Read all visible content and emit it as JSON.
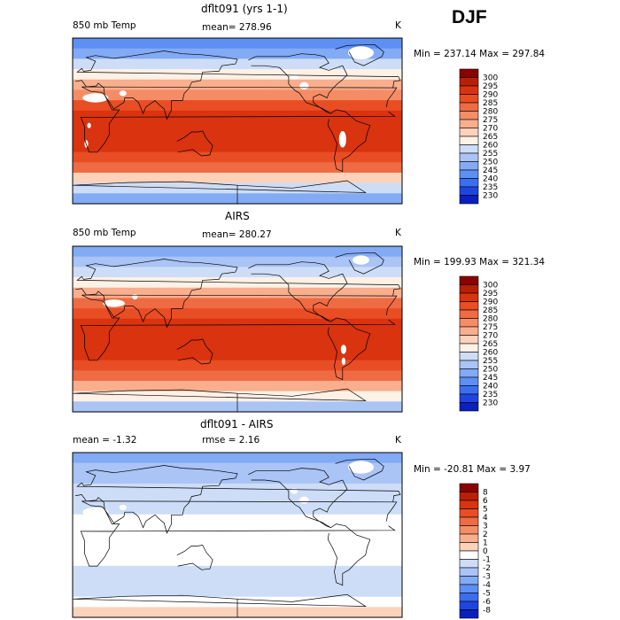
{
  "season": "DJF",
  "colors": {
    "temp_scale": [
      "#00008b",
      "#0a1fbf",
      "#1f45e0",
      "#3a6ef2",
      "#5d8ff5",
      "#83aaf5",
      "#a9c4f5",
      "#cdddf7",
      "#fff1e6",
      "#fcd2bb",
      "#f9ae8d",
      "#f48d66",
      "#ef6b43",
      "#e84d24",
      "#d9330f",
      "#b81f05",
      "#8b0000"
    ],
    "diff_scale": [
      "#00008b",
      "#0a1fbf",
      "#1f45e0",
      "#3a6ef2",
      "#5d8ff5",
      "#83aaf5",
      "#a9c4f5",
      "#cdddf7",
      "#ffffff",
      "#fcd2bb",
      "#f9ae8d",
      "#f48d66",
      "#ef6b43",
      "#e84d24",
      "#d9330f",
      "#b81f05",
      "#8b0000"
    ],
    "missing": "#ffffff",
    "land_outline": "#000000"
  },
  "panels": [
    {
      "title": "dflt091 (yrs 1-1)",
      "left_label": "850 mb Temp",
      "mid_label": "mean= 278.96",
      "unit": "K",
      "minmax": "Min = 237.14 Max = 297.84"
    },
    {
      "title": "AIRS",
      "left_label": "850 mb Temp",
      "mid_label": "mean= 280.27",
      "unit": "K",
      "minmax": "Min = 199.93 Max = 321.34"
    },
    {
      "title": "dflt091 - AIRS",
      "left_label": "mean =   -1.32",
      "mid_label": "rmse =    2.16",
      "unit": "K",
      "minmax": "Min = -20.81 Max =    3.97"
    }
  ],
  "chart_data": [
    {
      "type": "heatmap",
      "title": "dflt091 (yrs 1-1)",
      "variable": "850 mb Temp",
      "units": "K",
      "mean": 278.96,
      "min": 237.14,
      "max": 297.84,
      "colorbar_levels": [
        "300",
        "295",
        "290",
        "285",
        "280",
        "275",
        "270",
        "265",
        "260",
        "255",
        "250",
        "245",
        "240",
        "235",
        "230"
      ],
      "lat_band_values_north_to_south": [
        240,
        245,
        255,
        262,
        270,
        278,
        286,
        291,
        293,
        292,
        291,
        288,
        280,
        268,
        255,
        245
      ]
    },
    {
      "type": "heatmap",
      "title": "AIRS",
      "variable": "850 mb Temp",
      "units": "K",
      "mean": 280.27,
      "min": 199.93,
      "max": 321.34,
      "colorbar_levels": [
        "300",
        "295",
        "290",
        "285",
        "280",
        "275",
        "270",
        "265",
        "260",
        "255",
        "250",
        "245",
        "240",
        "235",
        "230"
      ],
      "lat_band_values_north_to_south": [
        245,
        250,
        257,
        264,
        272,
        280,
        288,
        292,
        294,
        293,
        292,
        289,
        282,
        272,
        260,
        250
      ]
    },
    {
      "type": "heatmap",
      "title": "dflt091 - AIRS",
      "units": "K",
      "mean": -1.32,
      "rmse": 2.16,
      "min": -20.81,
      "max": 3.97,
      "colorbar_levels": [
        "8",
        "6",
        "5",
        "4",
        "3",
        "2",
        "1",
        "0",
        "-1",
        "-2",
        "-3",
        "-4",
        "-5",
        "-6",
        "-8"
      ],
      "lat_band_values_north_to_south": [
        -3.5,
        -3,
        -2.5,
        -2,
        -1.5,
        -1.5,
        -1,
        -0.5,
        -0.5,
        -1,
        -1,
        -1.5,
        -2,
        -2,
        -1,
        0
      ]
    }
  ]
}
